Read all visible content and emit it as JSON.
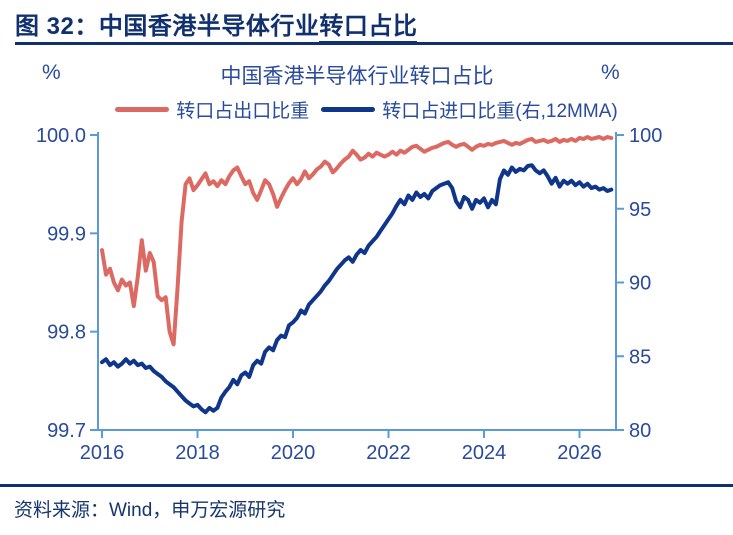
{
  "figure": {
    "header_prefix": "图 32：中国香港半导体行业",
    "header_underlined": "转口占比",
    "source_note": "资料来源：Wind，申万宏源研究"
  },
  "colors": {
    "header_navy": "#10306e",
    "label_blue": "#2a4a9c",
    "axis_light_blue": "#5b9bd5",
    "export_series_red": "#dd6a62",
    "import_series_blue": "#10368c"
  },
  "chart_data": {
    "type": "line",
    "title": "中国香港半导体行业转口占比",
    "left_unit": "%",
    "right_unit": "%",
    "grid": false,
    "legend_position": "top",
    "x_axis": {
      "ticks": [
        2016,
        2018,
        2020,
        2022,
        2024,
        2026
      ],
      "range": [
        2016.0,
        2026.85
      ]
    },
    "left_axis": {
      "ticks": [
        "100.0",
        "99.9",
        "99.8",
        "99.7"
      ],
      "range": [
        99.7,
        100.0
      ]
    },
    "right_axis": {
      "ticks": [
        "100",
        "95",
        "90",
        "85",
        "80"
      ],
      "range": [
        80,
        100
      ]
    },
    "series": [
      {
        "name": "转口占出口比重",
        "axis": "left",
        "color": "#dd6a62",
        "x_start": 2016.0,
        "x_step_months": 1,
        "values": [
          99.883,
          99.858,
          99.864,
          99.85,
          99.842,
          99.853,
          99.847,
          99.85,
          99.826,
          99.856,
          99.893,
          99.862,
          99.88,
          99.871,
          99.836,
          99.832,
          99.835,
          99.8,
          99.787,
          99.845,
          99.912,
          99.95,
          99.956,
          99.944,
          99.949,
          99.955,
          99.961,
          99.95,
          99.953,
          99.948,
          99.954,
          99.95,
          99.958,
          99.964,
          99.967,
          99.958,
          99.95,
          99.953,
          99.941,
          99.934,
          99.944,
          99.954,
          99.95,
          99.94,
          99.927,
          99.936,
          99.944,
          99.951,
          99.956,
          99.95,
          99.955,
          99.963,
          99.956,
          99.96,
          99.965,
          99.968,
          99.973,
          99.97,
          99.962,
          99.966,
          99.971,
          99.975,
          99.978,
          99.984,
          99.98,
          99.975,
          99.977,
          99.981,
          99.978,
          99.982,
          99.98,
          99.978,
          99.98,
          99.983,
          99.98,
          99.984,
          99.982,
          99.985,
          99.988,
          99.989,
          99.986,
          99.983,
          99.985,
          99.987,
          99.988,
          99.99,
          99.992,
          99.993,
          99.99,
          99.988,
          99.99,
          99.991,
          99.988,
          99.985,
          99.988,
          99.99,
          99.989,
          99.991,
          99.99,
          99.992,
          99.993,
          99.994,
          99.992,
          99.99,
          99.992,
          99.991,
          99.993,
          99.995,
          99.996,
          99.993,
          99.994,
          99.995,
          99.993,
          99.994,
          99.996,
          99.993,
          99.995,
          99.994,
          99.996,
          99.994,
          99.997,
          99.996,
          99.998,
          99.996,
          99.997,
          99.998,
          99.996,
          99.998,
          99.997
        ]
      },
      {
        "name": "转口占进口比重(右,12MMA)",
        "axis": "right",
        "color": "#10368c",
        "x_start": 2016.0,
        "x_step_months": 1,
        "values": [
          84.6,
          84.8,
          84.4,
          84.6,
          84.3,
          84.5,
          84.8,
          84.5,
          84.7,
          84.4,
          84.5,
          84.2,
          84.3,
          84.0,
          83.8,
          83.6,
          83.3,
          83.1,
          82.9,
          82.6,
          82.3,
          82.0,
          81.8,
          81.6,
          81.7,
          81.4,
          81.2,
          81.5,
          81.3,
          81.5,
          82.2,
          82.6,
          82.9,
          83.4,
          83.1,
          83.7,
          83.9,
          83.6,
          84.4,
          84.7,
          84.5,
          85.3,
          85.6,
          85.4,
          86.1,
          86.4,
          86.3,
          87.1,
          87.3,
          87.6,
          88.1,
          87.9,
          88.5,
          88.8,
          89.1,
          89.4,
          89.8,
          90.1,
          90.5,
          90.9,
          91.2,
          91.5,
          91.7,
          91.4,
          91.9,
          92.2,
          92.0,
          92.5,
          92.8,
          93.1,
          93.5,
          93.9,
          94.3,
          94.7,
          95.2,
          95.6,
          95.3,
          95.9,
          95.6,
          96.1,
          95.8,
          96.0,
          95.7,
          96.2,
          96.4,
          96.6,
          96.7,
          96.8,
          96.4,
          95.5,
          95.1,
          95.8,
          95.6,
          95.0,
          95.6,
          95.4,
          95.7,
          95.1,
          95.6,
          95.3,
          97.0,
          97.6,
          97.3,
          97.8,
          97.5,
          97.7,
          97.6,
          97.9,
          97.95,
          97.6,
          97.4,
          97.6,
          97.2,
          96.7,
          97.1,
          96.5,
          96.9,
          96.7,
          96.9,
          96.6,
          96.8,
          96.5,
          96.7,
          96.4,
          96.5,
          96.3,
          96.4,
          96.2,
          96.3
        ]
      }
    ]
  }
}
